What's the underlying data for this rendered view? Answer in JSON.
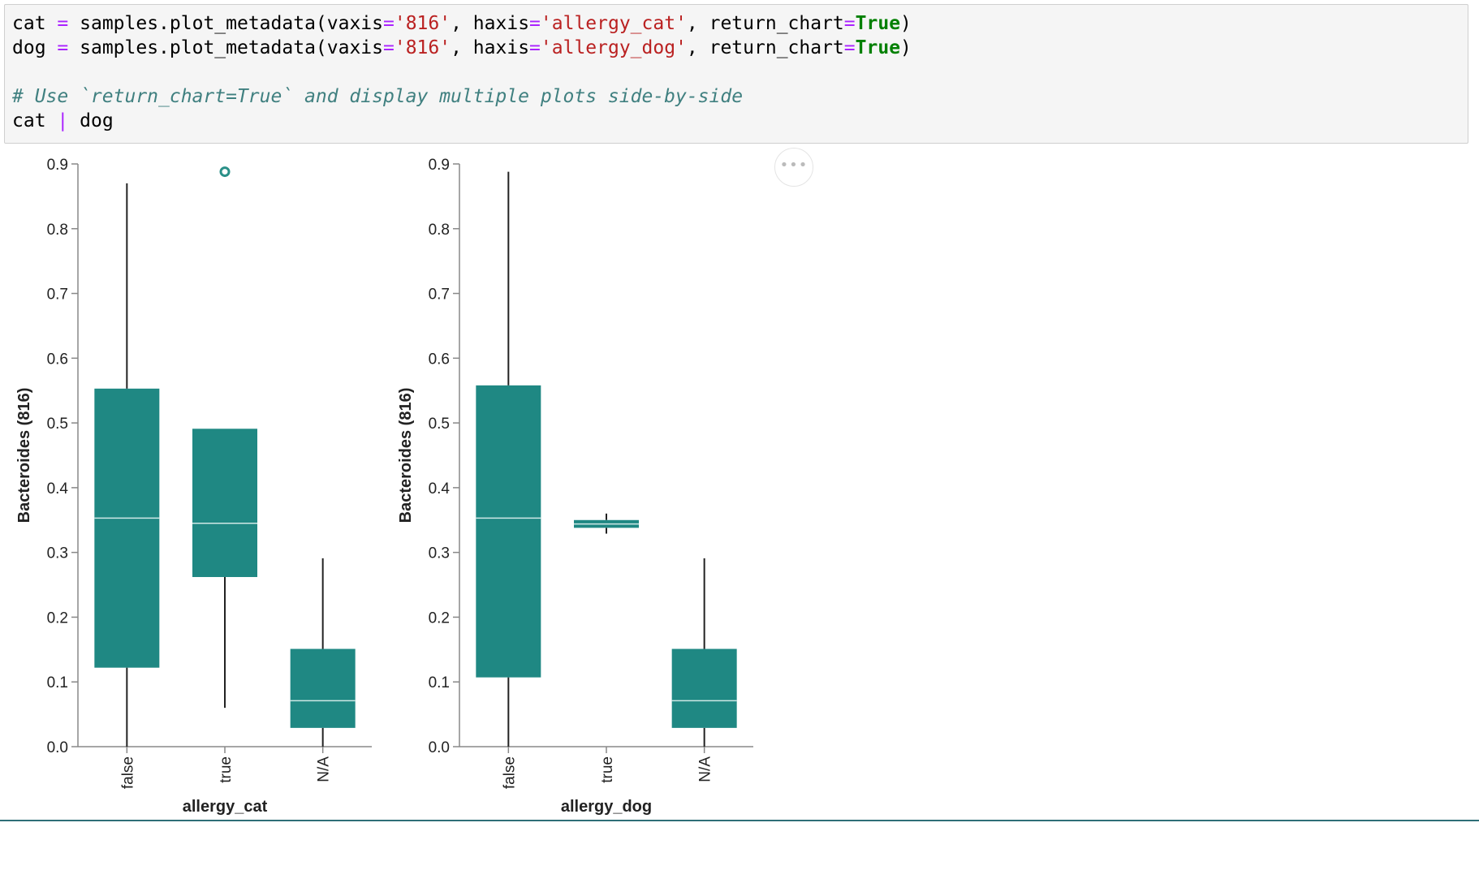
{
  "code": {
    "line1": {
      "var": "cat",
      "eq": "=",
      "call": "samples.plot_metadata(vaxis",
      "eq2": "=",
      "v": "'816'",
      "mid": ", haxis",
      "eq3": "=",
      "h": "'allergy_cat'",
      "mid2": ", return_chart",
      "eq4": "=",
      "kw": "True",
      "end": ")"
    },
    "line2": {
      "var": "dog",
      "eq": "=",
      "call": "samples.plot_metadata(vaxis",
      "eq2": "=",
      "v": "'816'",
      "mid": ", haxis",
      "eq3": "=",
      "h": "'allergy_dog'",
      "mid2": ", return_chart",
      "eq4": "=",
      "kw": "True",
      "end": ")"
    },
    "comment": "# Use `return_chart=True` and display multiple plots side-by-side",
    "line4": {
      "a": "cat",
      "op": "|",
      "b": "dog"
    }
  },
  "menu_icon": "ellipsis-icon",
  "menu_label": "•••",
  "colors": {
    "box": "#1f8883",
    "median": "#cfe8e6",
    "axis": "#888888",
    "whisker": "#222222",
    "outlier": "#2a9088"
  },
  "chart_data": [
    {
      "type": "boxplot",
      "xlabel": "allergy_cat",
      "ylabel": "Bacteroides (816)",
      "ylim": [
        0,
        0.9
      ],
      "yticks": [
        "0.0",
        "0.1",
        "0.2",
        "0.3",
        "0.4",
        "0.5",
        "0.6",
        "0.7",
        "0.8",
        "0.9"
      ],
      "categories": [
        "false",
        "true",
        "N/A"
      ],
      "boxes": [
        {
          "min": 0.0,
          "q1": 0.122,
          "median": 0.353,
          "q3": 0.553,
          "max": 0.87,
          "outliers": []
        },
        {
          "min": 0.06,
          "q1": 0.262,
          "median": 0.345,
          "q3": 0.491,
          "max": 0.491,
          "outliers": [
            0.888
          ]
        },
        {
          "min": 0.0,
          "q1": 0.029,
          "median": 0.071,
          "q3": 0.151,
          "max": 0.291,
          "outliers": []
        }
      ]
    },
    {
      "type": "boxplot",
      "xlabel": "allergy_dog",
      "ylabel": "Bacteroides (816)",
      "ylim": [
        0,
        0.9
      ],
      "yticks": [
        "0.0",
        "0.1",
        "0.2",
        "0.3",
        "0.4",
        "0.5",
        "0.6",
        "0.7",
        "0.8",
        "0.9"
      ],
      "categories": [
        "false",
        "true",
        "N/A"
      ],
      "boxes": [
        {
          "min": 0.0,
          "q1": 0.107,
          "median": 0.353,
          "q3": 0.558,
          "max": 0.888,
          "outliers": []
        },
        {
          "min": 0.329,
          "q1": 0.338,
          "median": 0.344,
          "q3": 0.35,
          "max": 0.36,
          "outliers": []
        },
        {
          "min": 0.0,
          "q1": 0.029,
          "median": 0.071,
          "q3": 0.151,
          "max": 0.291,
          "outliers": []
        }
      ]
    }
  ]
}
